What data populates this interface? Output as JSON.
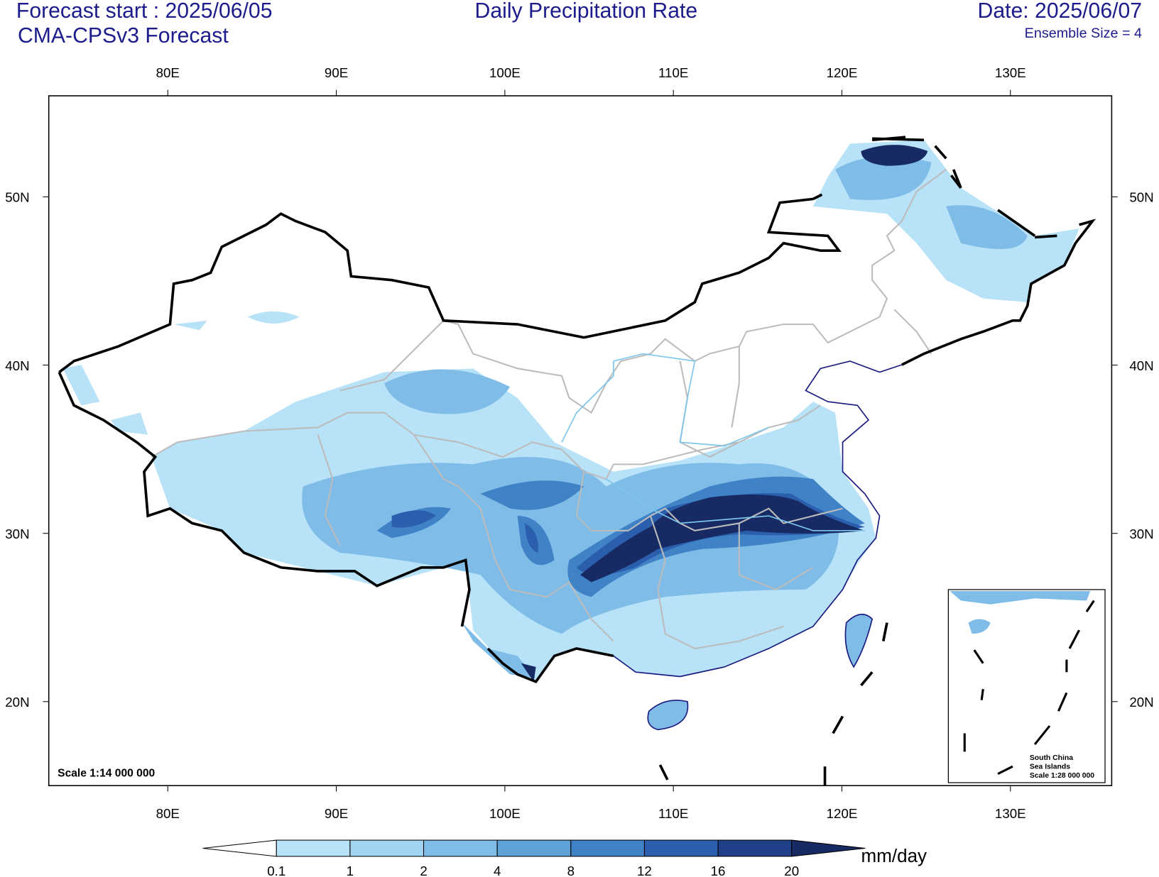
{
  "header": {
    "forecast_start": "Forecast start : 2025/06/05",
    "model": "CMA-CPSv3 Forecast",
    "title": "Daily Precipitation Rate",
    "date": "Date: 2025/06/07",
    "ensemble": "Ensemble Size = 4"
  },
  "map": {
    "lon_ticks": [
      {
        "value": 80,
        "label": "80E"
      },
      {
        "value": 90,
        "label": "90E"
      },
      {
        "value": 100,
        "label": "100E"
      },
      {
        "value": 110,
        "label": "110E"
      },
      {
        "value": 120,
        "label": "120E"
      },
      {
        "value": 130,
        "label": "130E"
      }
    ],
    "lat_ticks": [
      {
        "value": 20,
        "label": "20N"
      },
      {
        "value": 30,
        "label": "30N"
      },
      {
        "value": 40,
        "label": "40N"
      },
      {
        "value": 50,
        "label": "50N"
      }
    ],
    "scale": "Scale 1:14 000 000",
    "inset": {
      "lines": [
        "South China",
        "Sea Islands",
        "Scale 1:28 000 000"
      ]
    }
  },
  "colorbar": {
    "levels": [
      0.1,
      1,
      2,
      4,
      8,
      12,
      16,
      20
    ],
    "colors": [
      "#ffffff",
      "#b7e2f7",
      "#a0d4f1",
      "#7fbde8",
      "#5ea2d8",
      "#3f82c6",
      "#2b5fae",
      "#1f3f88",
      "#172a63"
    ],
    "units": "mm/day"
  }
}
